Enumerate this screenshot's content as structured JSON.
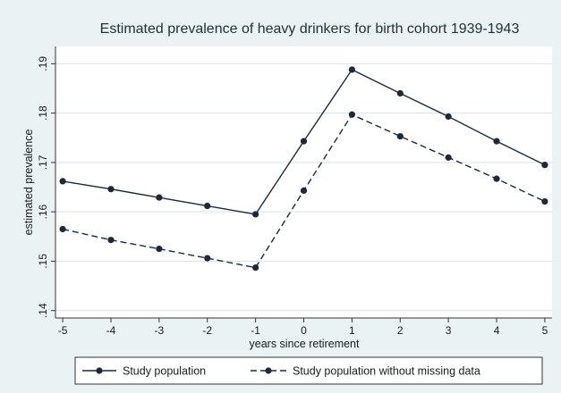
{
  "chart_data": {
    "type": "line",
    "title": "Estimated prevalence of heavy drinkers for birth cohort 1939-1943",
    "xlabel": "years since retirement",
    "ylabel": "estimated prevalence",
    "x": [
      -5,
      -4,
      -3,
      -2,
      -1,
      0,
      1,
      2,
      3,
      4,
      5
    ],
    "x_ticks": [
      "-5",
      "-4",
      "-3",
      "-2",
      "-1",
      "0",
      "1",
      "2",
      "3",
      "4",
      "5"
    ],
    "y_ticks": [
      ".14",
      ".15",
      ".16",
      ".17",
      ".18",
      ".19"
    ],
    "xlim": [
      -5.15,
      5.15
    ],
    "ylim": [
      0.1385,
      0.1935
    ],
    "grid": "horizontal",
    "legend_position": "bottom",
    "series": [
      {
        "name": "Study population",
        "style": "solid",
        "color": "#1a2a3a",
        "values": [
          0.1662,
          0.1646,
          0.1629,
          0.1612,
          0.1595,
          0.1743,
          0.1888,
          0.184,
          0.1793,
          0.1743,
          0.1695
        ]
      },
      {
        "name": "Study population without missing data",
        "style": "dashed",
        "color": "#1a2a3a",
        "values": [
          0.1565,
          0.1543,
          0.1525,
          0.1506,
          0.1487,
          0.1643,
          0.1797,
          0.1753,
          0.171,
          0.1667,
          0.1621
        ]
      }
    ]
  }
}
